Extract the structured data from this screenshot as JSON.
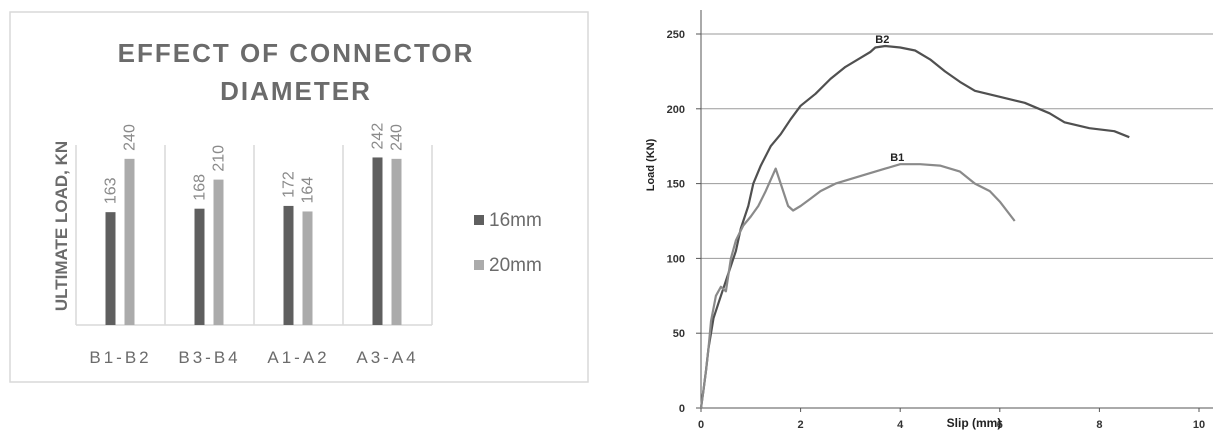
{
  "chart_data": [
    {
      "type": "bar",
      "title_lines": [
        "EFFECT OF CONNECTOR",
        "DIAMETER"
      ],
      "ylabel": "ULTIMATE LOAD, KN",
      "categories": [
        "B1-B2",
        "B3-B4",
        "A1-A2",
        "A3-A4"
      ],
      "ylim": [
        0,
        260
      ],
      "grid": "vertical category separators",
      "legend_position": "right",
      "series": [
        {
          "name": "16mm",
          "color": "#5f5f5f",
          "values": [
            163,
            168,
            172,
            242
          ]
        },
        {
          "name": "20mm",
          "color": "#ababab",
          "values": [
            240,
            210,
            164,
            240
          ]
        }
      ]
    },
    {
      "type": "line",
      "xlabel": "Slip (mm)",
      "ylabel": "Load (KN)",
      "xlim": [
        0,
        10
      ],
      "ylim": [
        0,
        250
      ],
      "xticks": [
        0,
        2,
        4,
        6,
        8,
        10
      ],
      "yticks": [
        0,
        50,
        100,
        150,
        200,
        250
      ],
      "grid": "horizontal",
      "series": [
        {
          "name": "B2",
          "color": "#505050",
          "points": [
            [
              0,
              0
            ],
            [
              0.05,
              12
            ],
            [
              0.1,
              25
            ],
            [
              0.15,
              40
            ],
            [
              0.25,
              60
            ],
            [
              0.35,
              70
            ],
            [
              0.45,
              80
            ],
            [
              0.55,
              90
            ],
            [
              0.7,
              105
            ],
            [
              0.8,
              120
            ],
            [
              0.95,
              135
            ],
            [
              1.05,
              150
            ],
            [
              1.2,
              162
            ],
            [
              1.4,
              175
            ],
            [
              1.6,
              183
            ],
            [
              1.8,
              193
            ],
            [
              2.0,
              202
            ],
            [
              2.3,
              210
            ],
            [
              2.6,
              220
            ],
            [
              2.9,
              228
            ],
            [
              3.2,
              234
            ],
            [
              3.4,
              238
            ],
            [
              3.5,
              241
            ],
            [
              3.7,
              242
            ],
            [
              4.0,
              241
            ],
            [
              4.3,
              239
            ],
            [
              4.6,
              233
            ],
            [
              4.9,
              225
            ],
            [
              5.2,
              218
            ],
            [
              5.5,
              212
            ],
            [
              6.0,
              208
            ],
            [
              6.5,
              204
            ],
            [
              7.0,
              197
            ],
            [
              7.3,
              191
            ],
            [
              7.8,
              187
            ],
            [
              8.3,
              185
            ],
            [
              8.6,
              181
            ]
          ]
        },
        {
          "name": "B1",
          "color": "#8a8a8a",
          "points": [
            [
              0,
              0
            ],
            [
              0.05,
              12
            ],
            [
              0.1,
              25
            ],
            [
              0.15,
              40
            ],
            [
              0.2,
              58
            ],
            [
              0.3,
              75
            ],
            [
              0.4,
              81
            ],
            [
              0.5,
              78
            ],
            [
              0.6,
              100
            ],
            [
              0.7,
              112
            ],
            [
              0.85,
              122
            ],
            [
              1.0,
              128
            ],
            [
              1.15,
              135
            ],
            [
              1.3,
              145
            ],
            [
              1.5,
              160
            ],
            [
              1.6,
              150
            ],
            [
              1.75,
              135
            ],
            [
              1.85,
              132
            ],
            [
              2.0,
              135
            ],
            [
              2.2,
              140
            ],
            [
              2.4,
              145
            ],
            [
              2.7,
              150
            ],
            [
              3.0,
              153
            ],
            [
              3.3,
              156
            ],
            [
              3.7,
              160
            ],
            [
              4.0,
              163
            ],
            [
              4.4,
              163
            ],
            [
              4.8,
              162
            ],
            [
              5.2,
              158
            ],
            [
              5.5,
              150
            ],
            [
              5.8,
              145
            ],
            [
              6.0,
              138
            ],
            [
              6.3,
              125
            ]
          ]
        }
      ]
    }
  ]
}
